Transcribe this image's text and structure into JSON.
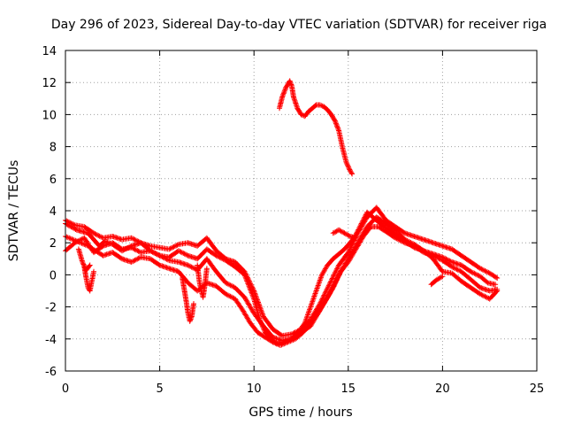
{
  "chart_data": {
    "type": "scatter",
    "title": "Day 296 of 2023, Sidereal Day-to-day VTEC variation (SDTVAR) for receiver riga",
    "xlabel": "GPS time / hours",
    "ylabel": "SDTVAR / TECUs",
    "xlim": [
      0,
      25
    ],
    "ylim": [
      -6,
      14
    ],
    "xticks": [
      "0",
      "5",
      "10",
      "15",
      "20",
      "25"
    ],
    "yticks": [
      "-6",
      "-4",
      "-2",
      "0",
      "2",
      "4",
      "6",
      "8",
      "10",
      "12",
      "14"
    ],
    "grid": true,
    "legend": "none",
    "marker": "+",
    "color": "#ff0000",
    "series": [
      {
        "name": "trace-1",
        "x": [
          0.0,
          0.3,
          0.6,
          0.9,
          1.2,
          1.5,
          1.8,
          2.1,
          2.5,
          3.0,
          3.5,
          4.0,
          4.5,
          5.0,
          5.5,
          6.0,
          6.5,
          7.0,
          7.5,
          8.0,
          8.5,
          9.0,
          9.5,
          10.0,
          10.3,
          10.6,
          10.9,
          11.2,
          11.5,
          11.8,
          12.1,
          12.4,
          12.7,
          13.0,
          13.3,
          13.6,
          13.9,
          14.2,
          14.5,
          14.8,
          15.1,
          15.4,
          15.7,
          16.0,
          16.3,
          16.6,
          16.9,
          17.2,
          17.5,
          18.0,
          18.5,
          19.0,
          19.5,
          20.0,
          20.5,
          21.0,
          21.5,
          22.0,
          22.4,
          22.8
        ],
        "y": [
          3.2,
          3.0,
          2.8,
          2.7,
          2.6,
          2.2,
          1.8,
          2.1,
          1.9,
          1.5,
          1.8,
          2.0,
          1.5,
          1.2,
          1.1,
          1.5,
          1.2,
          1.0,
          1.6,
          1.2,
          0.9,
          0.5,
          0.0,
          -1.5,
          -2.8,
          -3.6,
          -4.0,
          -4.3,
          -4.2,
          -4.1,
          -3.9,
          -3.5,
          -3.0,
          -2.0,
          -1.0,
          0.0,
          0.6,
          1.0,
          1.3,
          1.6,
          2.0,
          2.5,
          3.2,
          3.9,
          3.6,
          3.3,
          3.0,
          2.8,
          2.5,
          2.1,
          1.7,
          1.5,
          1.3,
          1.1,
          0.8,
          0.6,
          0.2,
          -0.1,
          -0.5,
          -0.6
        ]
      },
      {
        "name": "trace-2",
        "x": [
          0.0,
          0.4,
          0.8,
          1.2,
          1.6,
          2.0,
          2.5,
          3.0,
          3.5,
          4.0,
          4.5,
          5.0,
          5.5,
          6.0,
          6.5,
          7.0,
          7.5,
          8.0,
          8.5,
          9.0,
          9.4,
          9.8,
          10.2,
          10.6,
          11.0,
          11.4,
          11.8,
          12.2,
          12.6,
          13.0,
          13.4,
          13.8,
          14.2,
          14.6,
          15.0,
          15.4,
          15.8,
          16.2,
          16.6,
          17.0,
          17.5,
          18.0,
          18.5,
          19.0,
          19.5,
          20.0,
          20.5,
          21.0,
          21.5,
          22.0,
          22.5,
          22.9
        ],
        "y": [
          2.4,
          2.2,
          2.0,
          1.8,
          1.5,
          1.2,
          1.4,
          1.0,
          0.8,
          1.1,
          1.0,
          0.6,
          0.4,
          0.2,
          -0.5,
          -1.0,
          -0.5,
          -0.7,
          -1.2,
          -1.5,
          -2.2,
          -3.0,
          -3.6,
          -3.9,
          -4.2,
          -4.4,
          -4.2,
          -4.0,
          -3.6,
          -3.0,
          -2.4,
          -1.6,
          -0.8,
          0.2,
          0.8,
          1.6,
          2.4,
          3.0,
          3.0,
          2.7,
          2.3,
          2.0,
          1.8,
          1.4,
          1.2,
          0.9,
          0.5,
          0.2,
          -0.3,
          -0.8,
          -1.0,
          -0.9
        ]
      },
      {
        "name": "trace-3",
        "x": [
          0.0,
          0.5,
          1.0,
          1.5,
          2.0,
          2.5,
          3.0,
          3.5,
          4.0,
          4.5,
          5.0,
          5.5,
          6.0,
          6.5,
          7.0,
          7.5,
          8.0,
          8.5,
          9.0,
          9.5,
          10.0,
          10.5,
          11.0,
          11.5,
          12.0,
          12.5,
          13.0,
          13.5,
          14.0,
          14.5,
          15.0,
          15.5,
          16.0,
          16.5,
          17.0,
          17.5,
          18.0,
          18.5,
          19.0,
          19.5,
          20.0,
          20.5,
          21.0,
          21.5,
          22.0,
          22.5,
          22.9
        ],
        "y": [
          3.4,
          3.1,
          3.0,
          2.6,
          2.3,
          2.4,
          2.2,
          2.3,
          2.0,
          1.8,
          1.7,
          1.6,
          1.9,
          2.0,
          1.8,
          2.3,
          1.5,
          1.0,
          0.8,
          0.2,
          -1.0,
          -2.6,
          -3.4,
          -3.8,
          -3.7,
          -3.4,
          -2.8,
          -1.8,
          -0.6,
          0.6,
          1.4,
          2.6,
          3.6,
          4.2,
          3.4,
          3.0,
          2.6,
          2.4,
          2.2,
          2.0,
          1.8,
          1.6,
          1.2,
          0.8,
          0.4,
          0.1,
          -0.2
        ]
      },
      {
        "name": "trace-4",
        "x": [
          0.0,
          0.5,
          1.0,
          1.5,
          2.0,
          2.5,
          3.0,
          3.5,
          4.0,
          4.5,
          5.0,
          5.5,
          6.0,
          6.5,
          7.0,
          7.5,
          8.0,
          8.5,
          9.0,
          9.5,
          10.0,
          10.5,
          11.0,
          11.5,
          12.0,
          12.5,
          13.0,
          13.5,
          14.0,
          14.5,
          15.0,
          15.5,
          16.0,
          16.5,
          17.0,
          17.5,
          18.0,
          18.5,
          19.0,
          19.5,
          20.0,
          20.5,
          21.0,
          21.5,
          22.0,
          22.5,
          22.9
        ],
        "y": [
          1.5,
          2.0,
          2.3,
          1.4,
          1.8,
          2.0,
          1.6,
          1.7,
          1.4,
          1.5,
          1.2,
          0.9,
          0.8,
          0.6,
          0.3,
          1.0,
          0.2,
          -0.5,
          -0.8,
          -1.4,
          -2.4,
          -3.2,
          -3.9,
          -4.1,
          -4.0,
          -3.6,
          -3.2,
          -2.2,
          -1.2,
          0.0,
          1.0,
          2.0,
          3.0,
          3.6,
          3.2,
          2.8,
          2.2,
          1.9,
          1.5,
          1.0,
          0.2,
          0.1,
          -0.4,
          -0.8,
          -1.2,
          -1.5,
          -1.0
        ]
      },
      {
        "name": "trace-5",
        "x": [
          1.0,
          1.1,
          1.2,
          1.3,
          1.4,
          1.5
        ],
        "y": [
          0.5,
          -0.2,
          -0.8,
          -1.0,
          -0.4,
          0.2
        ]
      },
      {
        "name": "trace-6",
        "x": [
          6.2,
          6.3,
          6.4,
          6.5,
          6.6,
          6.7,
          6.8
        ],
        "y": [
          -0.2,
          -0.9,
          -1.6,
          -2.4,
          -2.9,
          -2.6,
          -1.8
        ]
      },
      {
        "name": "trace-7",
        "x": [
          7.0,
          7.1,
          7.2,
          7.3,
          7.4,
          7.5
        ],
        "y": [
          0.6,
          -0.4,
          -1.0,
          -1.4,
          -0.6,
          0.4
        ]
      },
      {
        "name": "trace-8",
        "x": [
          0.7,
          0.9,
          1.1,
          1.3
        ],
        "y": [
          1.6,
          0.8,
          0.3,
          0.6
        ]
      },
      {
        "name": "trace-9",
        "x": [
          14.2,
          14.5,
          14.8,
          15.1,
          15.4
        ],
        "y": [
          2.6,
          2.8,
          2.6,
          2.4,
          2.3
        ]
      },
      {
        "name": "trace-10",
        "x": [
          19.4,
          19.7,
          20.0
        ],
        "y": [
          -0.6,
          -0.3,
          -0.1
        ]
      },
      {
        "name": "upper-arc",
        "x": [
          11.35,
          11.5,
          11.7,
          11.9,
          12.0,
          12.1,
          12.3,
          12.5,
          12.7,
          12.9,
          13.1,
          13.3,
          13.5,
          13.7,
          13.9,
          14.1,
          14.3,
          14.5,
          14.7,
          14.9,
          15.1,
          15.2
        ],
        "y": [
          10.4,
          11.1,
          11.7,
          12.1,
          11.8,
          11.1,
          10.4,
          10.0,
          9.9,
          10.2,
          10.4,
          10.6,
          10.6,
          10.5,
          10.3,
          10.0,
          9.6,
          9.0,
          7.9,
          7.0,
          6.5,
          6.3
        ]
      }
    ]
  }
}
